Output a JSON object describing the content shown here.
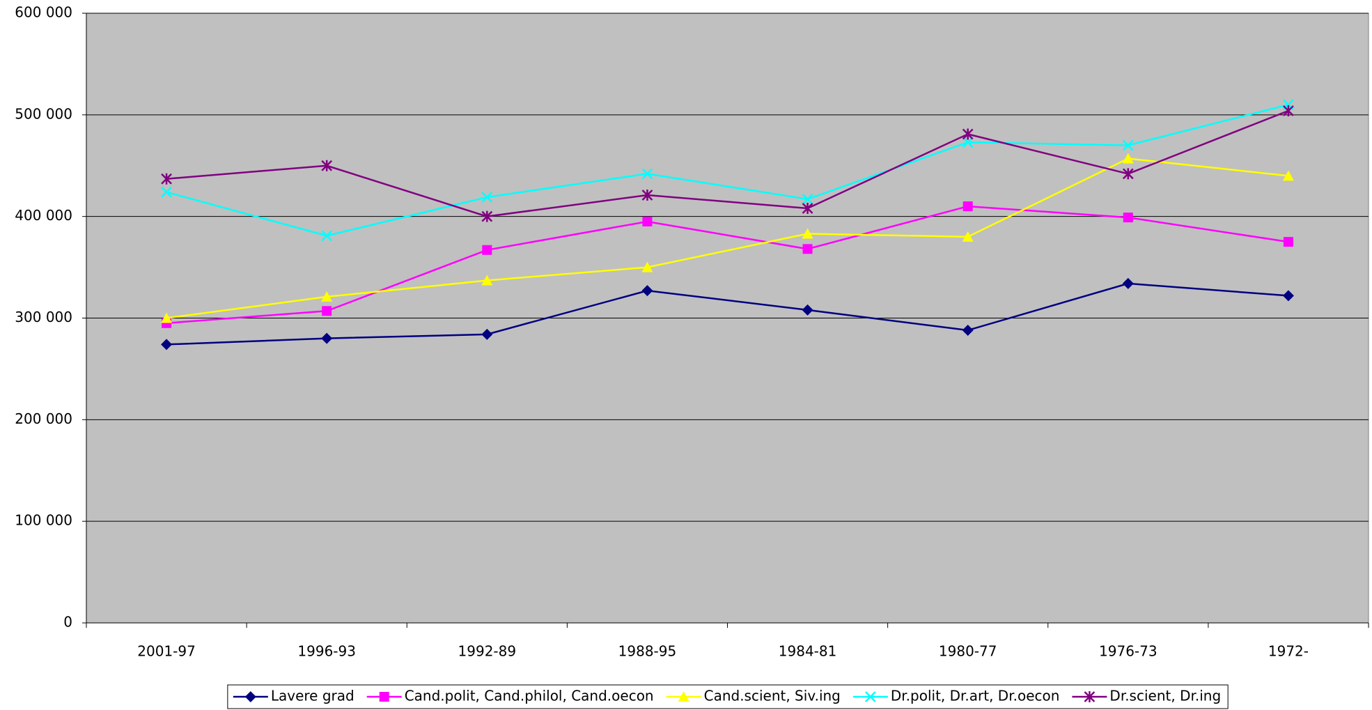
{
  "chart_data": {
    "type": "line",
    "categories": [
      "2001-97",
      "1996-93",
      "1992-89",
      "1988-95",
      "1984-81",
      "1980-77",
      "1976-73",
      "1972-"
    ],
    "series": [
      {
        "name": "Lavere grad",
        "color": "#000080",
        "marker": "diamond",
        "values": [
          274000,
          280000,
          284000,
          327000,
          308000,
          288000,
          334000,
          322000
        ]
      },
      {
        "name": "Cand.polit, Cand.philol, Cand.oecon",
        "color": "#ff00ff",
        "marker": "square",
        "values": [
          295000,
          307000,
          367000,
          395000,
          368000,
          410000,
          399000,
          375000
        ]
      },
      {
        "name": "Cand.scient, Siv.ing",
        "color": "#ffff00",
        "marker": "triangle",
        "values": [
          300000,
          321000,
          337000,
          350000,
          383000,
          380000,
          457000,
          440000
        ]
      },
      {
        "name": "Dr.polit, Dr.art, Dr.oecon",
        "color": "#00ffff",
        "marker": "x",
        "values": [
          424000,
          381000,
          419000,
          442000,
          417000,
          473000,
          470000,
          510000
        ]
      },
      {
        "name": "Dr.scient, Dr.ing",
        "color": "#800080",
        "marker": "star",
        "values": [
          437000,
          450000,
          400000,
          421000,
          408000,
          481000,
          442000,
          504000
        ]
      }
    ],
    "ylim": [
      0,
      600000
    ],
    "yticks": [
      0,
      {
        "value": 100000,
        "label": "100 000"
      },
      {
        "value": 200000,
        "label": "200 000"
      },
      {
        "value": 300000,
        "label": "300 000"
      },
      {
        "value": 400000,
        "label": "400 000"
      },
      {
        "value": 500000,
        "label": "500 000"
      },
      {
        "value": 600000,
        "label": "600 000"
      }
    ],
    "grid": true,
    "plot_background": "#c0c0c0",
    "legend": "bottom"
  }
}
